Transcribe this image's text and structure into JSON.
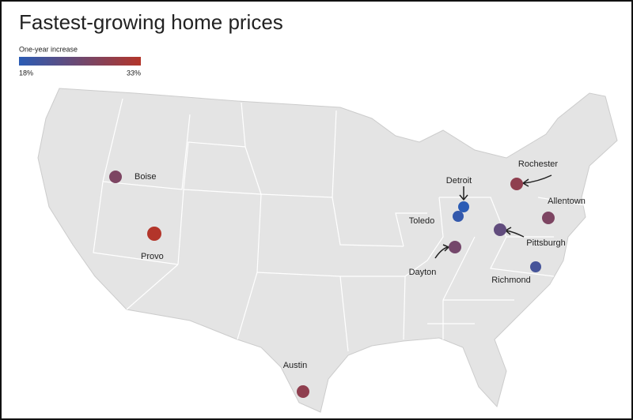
{
  "header": {
    "title": "Fastest-growing home prices"
  },
  "legend": {
    "label": "One-year increase",
    "min": {
      "value": 18,
      "label": "18%"
    },
    "max": {
      "value": 33,
      "label": "33%"
    },
    "color_min": "#2b5cb5",
    "color_max": "#b3352a"
  },
  "cities": [
    {
      "name": "Boise",
      "value": 27
    },
    {
      "name": "Provo",
      "value": 33
    },
    {
      "name": "Austin",
      "value": 29
    },
    {
      "name": "Detroit",
      "value": 18
    },
    {
      "name": "Toledo",
      "value": 19
    },
    {
      "name": "Dayton",
      "value": 26
    },
    {
      "name": "Pittsburgh",
      "value": 24
    },
    {
      "name": "Rochester",
      "value": 29
    },
    {
      "name": "Allentown",
      "value": 27
    },
    {
      "name": "Richmond",
      "value": 21
    }
  ]
}
